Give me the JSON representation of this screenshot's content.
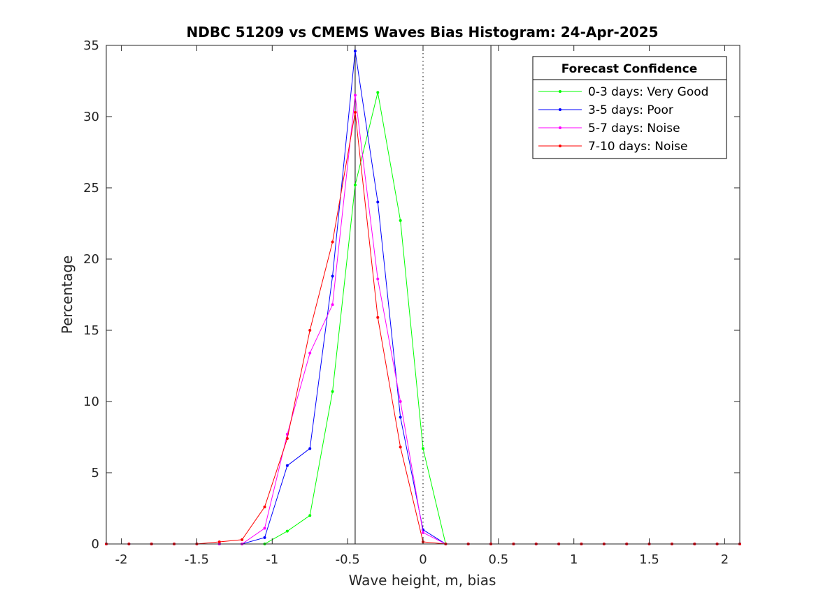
{
  "chart_data": {
    "type": "line",
    "title": "NDBC 51209 vs CMEMS Waves Bias Histogram: 24-Apr-2025",
    "xlabel": "Wave height, m, bias",
    "ylabel": "Percentage",
    "xlim": [
      -2.1,
      2.1
    ],
    "ylim": [
      0,
      35
    ],
    "xticks": [
      -2,
      -1.5,
      -1,
      -0.5,
      0,
      0.5,
      1,
      1.5,
      2
    ],
    "xtick_labels": [
      "-2",
      "-1.5",
      "-1",
      "-0.5",
      "0",
      "0.5",
      "1",
      "1.5",
      "2"
    ],
    "yticks": [
      0,
      5,
      10,
      15,
      20,
      25,
      30,
      35
    ],
    "ytick_labels": [
      "0",
      "5",
      "10",
      "15",
      "20",
      "25",
      "30",
      "35"
    ],
    "grid": false,
    "vertical_lines": [
      {
        "x": -0.45,
        "style": "solid"
      },
      {
        "x": 0,
        "style": "dotted"
      },
      {
        "x": 0.45,
        "style": "solid"
      }
    ],
    "legend": {
      "title": "Forecast Confidence",
      "placement": "top-right"
    },
    "x": [
      -2.1,
      -1.95,
      -1.8,
      -1.65,
      -1.5,
      -1.35,
      -1.2,
      -1.05,
      -0.9,
      -0.75,
      -0.6,
      -0.45,
      -0.3,
      -0.15,
      0,
      0.15,
      0.3,
      0.45,
      0.6,
      0.75,
      0.9,
      1.05,
      1.2,
      1.35,
      1.5,
      1.65,
      1.8,
      1.95,
      2.1
    ],
    "series": [
      {
        "name": "0-3 days: Very Good",
        "color": "#00ff00",
        "values": [
          0,
          0,
          0,
          0,
          0,
          0,
          0,
          0,
          0.9,
          2.0,
          10.7,
          25.2,
          31.7,
          22.7,
          6.7,
          0,
          0,
          0,
          0,
          0,
          0,
          0,
          0,
          0,
          0,
          0,
          0,
          0,
          0
        ]
      },
      {
        "name": "3-5 days: Poor",
        "color": "#0000ff",
        "values": [
          0,
          0,
          0,
          0,
          0,
          0,
          0,
          0.45,
          5.5,
          6.7,
          18.8,
          34.6,
          24.0,
          8.9,
          1.0,
          0,
          0,
          0,
          0,
          0,
          0,
          0,
          0,
          0,
          0,
          0,
          0,
          0,
          0
        ]
      },
      {
        "name": "5-7 days: Noise",
        "color": "#ff00ff",
        "values": [
          0,
          0,
          0,
          0,
          0,
          0,
          0,
          1.1,
          7.7,
          13.4,
          16.8,
          31.5,
          18.6,
          10.0,
          0.8,
          0,
          0,
          0,
          0,
          0,
          0,
          0,
          0,
          0,
          0,
          0,
          0,
          0,
          0
        ]
      },
      {
        "name": "7-10 days: Noise",
        "color": "#ff0000",
        "values": [
          0,
          0,
          0,
          0,
          0,
          0.15,
          0.3,
          2.6,
          7.4,
          15.0,
          21.2,
          30.3,
          15.9,
          6.8,
          0.15,
          0,
          0,
          0,
          0,
          0,
          0,
          0,
          0,
          0,
          0,
          0,
          0,
          0,
          0
        ]
      }
    ]
  }
}
